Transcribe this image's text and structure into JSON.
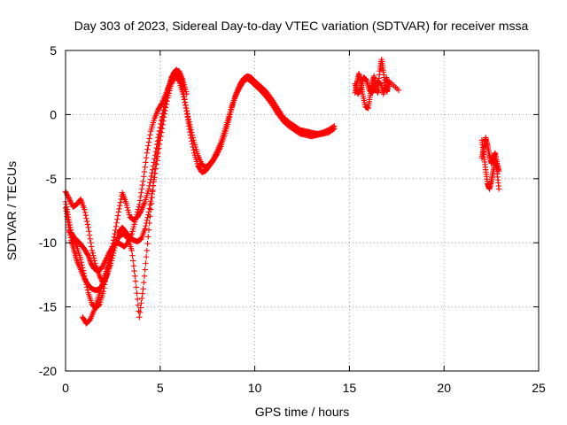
{
  "chart_data": {
    "type": "scatter",
    "title": "Day 303 of 2023, Sidereal Day-to-day VTEC variation (SDTVAR) for receiver mssa",
    "xlabel": "GPS time / hours",
    "ylabel": "SDTVAR / TECUs",
    "xlim": [
      0,
      25
    ],
    "ylim": [
      -20,
      5
    ],
    "xticks": [
      0,
      5,
      10,
      15,
      20,
      25
    ],
    "yticks": [
      -20,
      -15,
      -10,
      -5,
      0,
      5
    ],
    "grid": true,
    "marker": "+",
    "series": [
      {
        "name": "SDTVAR",
        "color": "#ff0000",
        "segments": [
          {
            "x": [
              0.0,
              0.15,
              0.3,
              0.45,
              0.6,
              0.8,
              1.0,
              1.2,
              1.35,
              1.5,
              1.7,
              1.9,
              2.1,
              2.3,
              2.5,
              2.7,
              2.9,
              3.1,
              3.3,
              3.5,
              3.7,
              3.9,
              4.1,
              4.3,
              4.5,
              4.7,
              4.9,
              5.1,
              5.3,
              5.5,
              5.7,
              5.85,
              6.0,
              6.15,
              6.3,
              6.45,
              6.6,
              6.8,
              7.0,
              7.2,
              7.4,
              7.6,
              7.8,
              8.0,
              8.2,
              8.4,
              8.6,
              8.8,
              9.0,
              9.2,
              9.4,
              9.6,
              9.8,
              10.0,
              10.3,
              10.6,
              10.9,
              11.2,
              11.5,
              11.8,
              12.1,
              12.4,
              12.7,
              13.0,
              13.3,
              13.6,
              13.9,
              14.2
            ],
            "y": [
              -6.8,
              -8.0,
              -9.2,
              -9.6,
              -9.8,
              -10.1,
              -10.5,
              -11.0,
              -11.6,
              -12.0,
              -12.2,
              -12.0,
              -11.4,
              -10.8,
              -10.3,
              -10.0,
              -10.1,
              -10.3,
              -10.0,
              -9.3,
              -8.2,
              -7.0,
              -5.2,
              -3.0,
              -1.3,
              -0.3,
              0.4,
              0.9,
              1.6,
              2.4,
              3.2,
              3.5,
              3.2,
              2.4,
              1.2,
              -0.2,
              -1.6,
              -3.0,
              -4.0,
              -4.5,
              -4.4,
              -4.0,
              -3.6,
              -3.1,
              -2.5,
              -1.6,
              -0.6,
              0.6,
              1.6,
              2.3,
              2.8,
              3.0,
              2.9,
              2.6,
              2.2,
              1.8,
              1.2,
              0.5,
              -0.2,
              -0.6,
              -0.9,
              -1.2,
              -1.3,
              -1.4,
              -1.5,
              -1.4,
              -1.2,
              -0.9
            ]
          },
          {
            "x": [
              0.0,
              0.15,
              0.3,
              0.45,
              0.6,
              0.8,
              1.0,
              1.2,
              1.4,
              1.6,
              1.8,
              2.0,
              2.2,
              2.4,
              2.6,
              2.8,
              3.0,
              3.2,
              3.4,
              3.6,
              3.8,
              4.0,
              4.2,
              4.4,
              4.6,
              4.8,
              5.0,
              5.2,
              5.4,
              5.6,
              5.8,
              6.0,
              6.2,
              6.4,
              6.6,
              6.8,
              7.0,
              7.2,
              7.4,
              7.6,
              7.8,
              8.0,
              8.2,
              8.4,
              8.6,
              8.8,
              9.0,
              9.2,
              9.4,
              9.6,
              9.8,
              10.0,
              10.3,
              10.6,
              10.9,
              11.2,
              11.5,
              11.8,
              12.1,
              12.4,
              12.7,
              13.0,
              13.3,
              13.6,
              13.9,
              14.2
            ],
            "y": [
              -7.3,
              -8.6,
              -9.8,
              -10.6,
              -11.4,
              -12.1,
              -12.8,
              -13.3,
              -13.6,
              -13.7,
              -13.6,
              -13.2,
              -12.5,
              -11.6,
              -10.4,
              -9.2,
              -8.8,
              -9.2,
              -9.6,
              -9.8,
              -9.9,
              -9.7,
              -8.9,
              -7.6,
              -5.9,
              -3.9,
              -2.0,
              -0.2,
              1.3,
              2.4,
              3.0,
              2.6,
              1.6,
              0.3,
              -1.0,
              -2.2,
              -3.2,
              -3.9,
              -4.1,
              -3.9,
              -3.5,
              -2.9,
              -2.2,
              -1.3,
              -0.3,
              0.7,
              1.5,
              2.1,
              2.6,
              2.8,
              2.6,
              2.3,
              1.9,
              1.4,
              0.8,
              0.1,
              -0.5,
              -0.9,
              -1.2,
              -1.5,
              -1.6,
              -1.7,
              -1.6,
              -1.5,
              -1.4,
              -1.1
            ]
          },
          {
            "x": [
              0.9,
              1.1,
              1.3,
              1.5,
              1.7,
              1.9,
              2.1,
              2.3,
              2.5,
              2.7,
              2.9,
              3.1,
              3.3,
              3.5,
              3.7,
              3.9,
              4.1,
              4.3,
              4.5,
              4.7,
              4.9,
              5.1,
              5.3,
              5.5,
              5.7,
              5.9,
              6.1,
              6.3
            ],
            "y": [
              -15.8,
              -16.3,
              -16.0,
              -15.3,
              -14.4,
              -13.4,
              -12.4,
              -11.4,
              -10.5,
              -9.8,
              -9.4,
              -9.3,
              -9.7,
              -10.6,
              -13.0,
              -15.8,
              -13.6,
              -10.6,
              -7.4,
              -4.6,
              -2.3,
              -0.4,
              1.1,
              2.3,
              3.0,
              3.3,
              2.9,
              2.0
            ]
          },
          {
            "x": [
              0.2,
              0.4,
              0.6,
              0.8,
              1.0,
              1.2,
              1.4,
              1.6,
              1.8,
              2.0,
              2.2,
              2.4,
              2.6,
              2.8,
              3.0,
              3.2,
              3.4,
              3.6,
              3.8,
              4.0,
              4.2,
              4.4,
              4.6,
              4.8,
              5.0,
              5.2,
              5.4,
              5.6,
              5.8,
              6.0,
              6.2,
              6.4
            ],
            "y": [
              -9.1,
              -9.7,
              -10.3,
              -11.3,
              -12.6,
              -13.9,
              -14.8,
              -15.1,
              -14.8,
              -13.8,
              -12.2,
              -10.8,
              -9.3,
              -7.6,
              -6.1,
              -6.9,
              -8.0,
              -8.2,
              -8.0,
              -7.5,
              -6.8,
              -5.8,
              -4.3,
              -2.6,
              -1.0,
              0.6,
              1.9,
              2.9,
              3.4,
              3.4,
              2.7,
              1.6
            ]
          },
          {
            "x": [
              0.0,
              0.2,
              0.4,
              0.6,
              0.8,
              1.0,
              1.2,
              1.4,
              1.6,
              1.8,
              2.0,
              2.2,
              2.4
            ],
            "y": [
              -6.0,
              -6.6,
              -7.2,
              -7.0,
              -6.6,
              -7.4,
              -8.8,
              -10.6,
              -11.8,
              -12.6,
              -13.2,
              -12.4,
              -11.2
            ]
          },
          {
            "x": [
              15.3,
              15.4,
              15.5,
              15.6,
              15.7,
              15.85,
              16.0,
              16.1,
              16.2,
              16.3,
              16.4,
              16.5,
              16.6,
              16.7,
              16.8,
              16.9,
              17.0,
              17.1,
              17.6
            ],
            "y": [
              1.7,
              2.5,
              3.2,
              2.6,
              1.6,
              0.6,
              0.5,
              1.5,
              2.4,
              3.0,
              2.1,
              1.7,
              3.4,
              4.3,
              3.3,
              2.1,
              1.8,
              2.6,
              1.9
            ]
          },
          {
            "x": [
              15.3,
              15.45,
              15.6,
              15.75,
              15.9,
              16.05,
              16.2,
              16.35,
              16.5,
              16.65,
              16.8,
              16.95,
              17.1
            ],
            "y": [
              2.4,
              1.6,
              2.0,
              2.9,
              2.7,
              1.9,
              1.7,
              2.2,
              2.6,
              2.4,
              1.6,
              2.9,
              2.2
            ]
          },
          {
            "x": [
              22.0,
              22.1,
              22.2,
              22.3,
              22.4,
              22.5,
              22.6,
              22.7,
              22.8,
              22.9
            ],
            "y": [
              -2.0,
              -3.1,
              -4.3,
              -5.4,
              -5.8,
              -5.2,
              -4.4,
              -3.6,
              -4.4,
              -5.8
            ]
          },
          {
            "x": [
              22.0,
              22.1,
              22.2,
              22.3,
              22.4,
              22.5,
              22.6,
              22.7,
              22.8,
              22.9
            ],
            "y": [
              -3.4,
              -2.6,
              -1.8,
              -2.4,
              -3.2,
              -3.8,
              -3.4,
              -3.0,
              -3.8,
              -4.4
            ]
          }
        ]
      }
    ]
  }
}
